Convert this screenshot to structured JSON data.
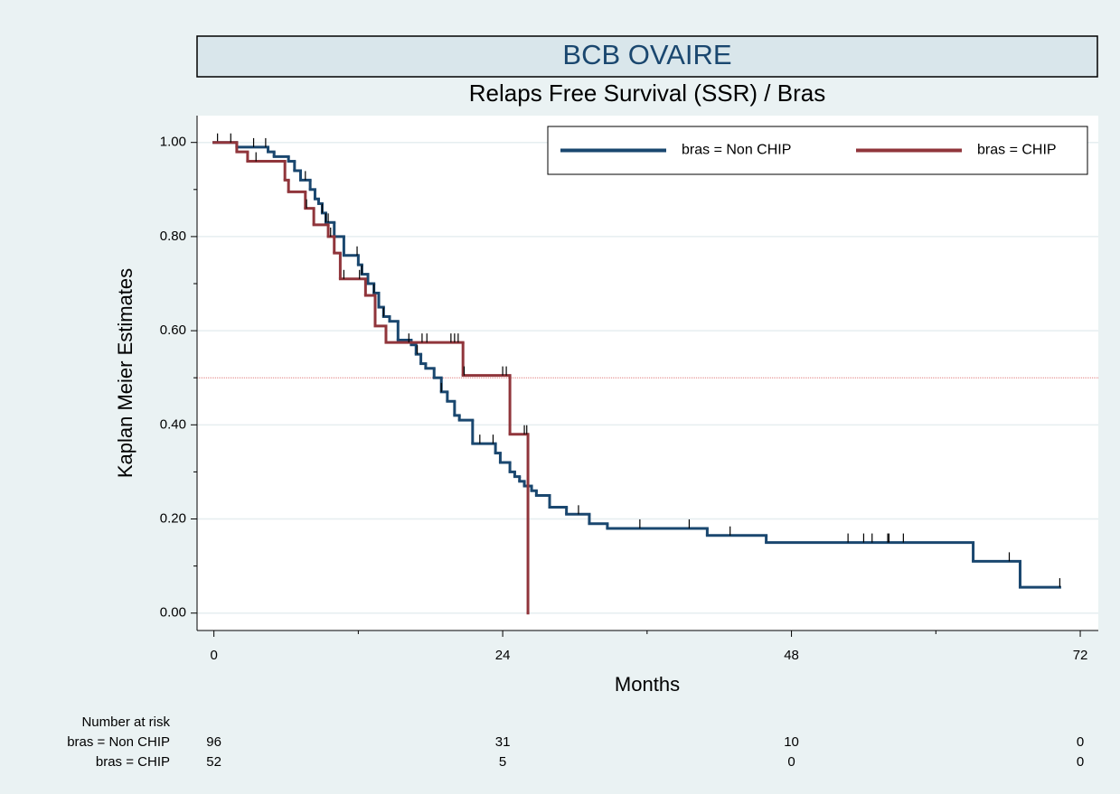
{
  "chart_data": {
    "type": "step",
    "title": "BCB OVAIRE",
    "subtitle": "Relaps Free Survival (SSR) / Bras",
    "x_label": "Months",
    "y_label": "Kaplan Meier Estimates",
    "xlim": [
      -1.4,
      73.5
    ],
    "ylim": [
      -0.037,
      1.057
    ],
    "xticks": [
      0,
      24,
      48,
      72
    ],
    "xminor": [
      12,
      36,
      60
    ],
    "yticks": [
      {
        "value": 0,
        "label": "0.00"
      },
      {
        "value": 0.2,
        "label": "0.20"
      },
      {
        "value": 0.4,
        "label": "0.40"
      },
      {
        "value": 0.6,
        "label": "0.60"
      },
      {
        "value": 0.8,
        "label": "0.80"
      },
      {
        "value": 1,
        "label": "1.00"
      }
    ],
    "yminor": [
      0.1,
      0.3,
      0.5,
      0.7,
      0.9
    ],
    "grid": true,
    "hline": {
      "value": 0.5,
      "color": "#e07a7a"
    },
    "legend": "top-right",
    "series": [
      {
        "name": "bras = Non CHIP",
        "color": "#1a476f",
        "x": [
          0,
          1.9,
          4.5,
          5.0,
          6.2,
          6.7,
          7.2,
          8.0,
          8.4,
          8.7,
          9.0,
          9.3,
          10.0,
          10.8,
          12.0,
          12.3,
          12.8,
          13.3,
          13.7,
          14.1,
          14.6,
          15.3,
          16.4,
          16.8,
          17.2,
          17.6,
          18.3,
          18.9,
          19.4,
          20.0,
          20.4,
          21.5,
          23.4,
          23.8,
          24.6,
          25.0,
          25.4,
          25.8,
          26.4,
          26.8,
          27.9,
          29.3,
          31.2,
          32.7,
          41.0,
          45.9,
          63.1,
          67.0
        ],
        "values": [
          1.0,
          0.99,
          0.98,
          0.97,
          0.96,
          0.94,
          0.92,
          0.9,
          0.88,
          0.87,
          0.85,
          0.83,
          0.8,
          0.76,
          0.74,
          0.72,
          0.7,
          0.68,
          0.65,
          0.63,
          0.62,
          0.58,
          0.57,
          0.55,
          0.53,
          0.52,
          0.5,
          0.47,
          0.45,
          0.42,
          0.41,
          0.36,
          0.34,
          0.32,
          0.3,
          0.29,
          0.28,
          0.27,
          0.26,
          0.25,
          0.225,
          0.21,
          0.19,
          0.18,
          0.165,
          0.15,
          0.11,
          0.055
        ],
        "censored": [
          0.3,
          3.3,
          4.3,
          7.6,
          9.0,
          9.3,
          9.5,
          11.9,
          12.3,
          13.3,
          14.1,
          16.9,
          18.9,
          22.1,
          23.2,
          30.3,
          35.4,
          39.5,
          42.9,
          52.7,
          54.0,
          54.7,
          56.0,
          56.1,
          57.3,
          66.1,
          70.3
        ]
      },
      {
        "name": "bras = CHIP",
        "color": "#90353b",
        "x": [
          0,
          1.9,
          2.8,
          5.9,
          6.2,
          7.6,
          8.3,
          9.5,
          10.0,
          10.5,
          12.6,
          13.4,
          14.3,
          20.7,
          24.6,
          26.1
        ],
        "values": [
          1.0,
          0.98,
          0.96,
          0.92,
          0.895,
          0.86,
          0.825,
          0.8,
          0.765,
          0.71,
          0.675,
          0.61,
          0.575,
          0.505,
          0.38,
          0.0
        ],
        "censored": [
          1.4,
          3.5,
          7.7,
          9.7,
          10.8,
          12.1,
          16.2,
          17.3,
          17.7,
          19.7,
          20.0,
          20.3,
          20.8,
          24.0,
          24.3,
          25.8,
          26.0
        ]
      }
    ],
    "risk_table": {
      "title": "Number at risk",
      "rows": [
        {
          "label": "bras = Non CHIP",
          "values": [
            96,
            31,
            10,
            0
          ]
        },
        {
          "label": "bras = CHIP",
          "values": [
            52,
            5,
            0,
            0
          ]
        }
      ]
    }
  }
}
